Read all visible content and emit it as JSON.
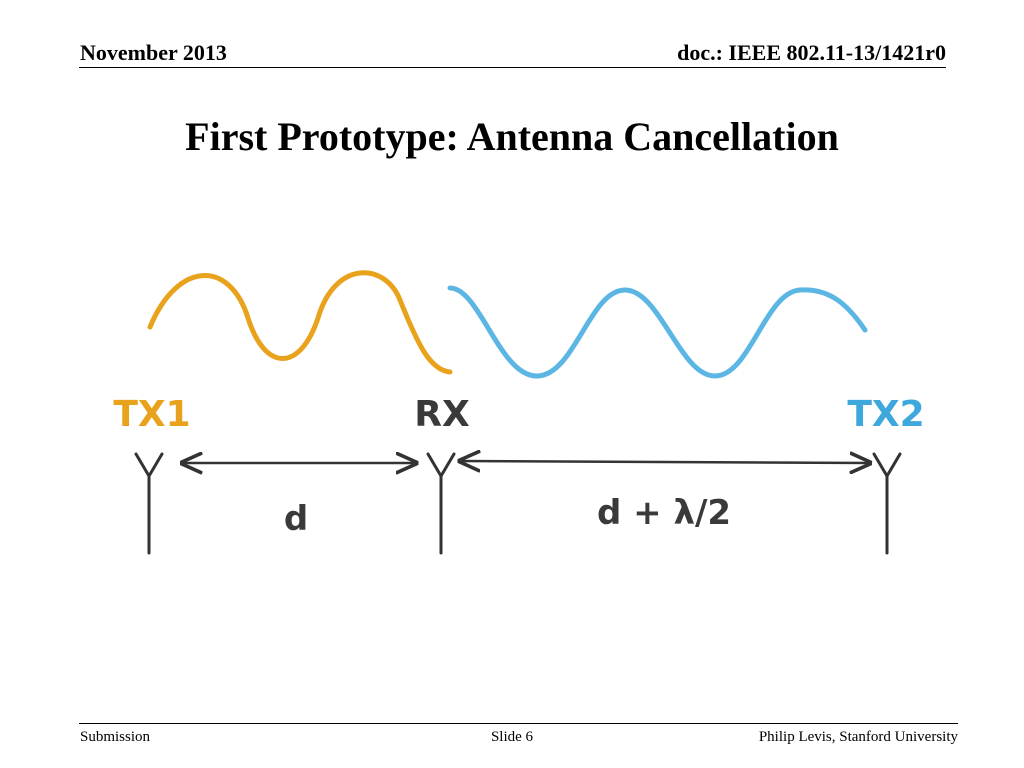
{
  "header": {
    "date": "November 2013",
    "doc_id": "doc.: IEEE 802.11-13/1421r0"
  },
  "slide": {
    "title": "First Prototype: Antenna Cancellation"
  },
  "diagram": {
    "antennas": [
      {
        "label": "TX1",
        "color": "#e8a21c"
      },
      {
        "label": "RX",
        "color": "#3a3a3a"
      },
      {
        "label": "TX2",
        "color": "#3ea7dc"
      }
    ],
    "distances": [
      {
        "label": "d"
      },
      {
        "label": "d + λ/2"
      }
    ],
    "waves": [
      {
        "source": "TX1",
        "color": "#e8a21c"
      },
      {
        "source": "TX2",
        "color": "#5cb6e4"
      }
    ]
  },
  "footer": {
    "left": "Submission",
    "center": "Slide 6",
    "right": "Philip Levis, Stanford University"
  }
}
